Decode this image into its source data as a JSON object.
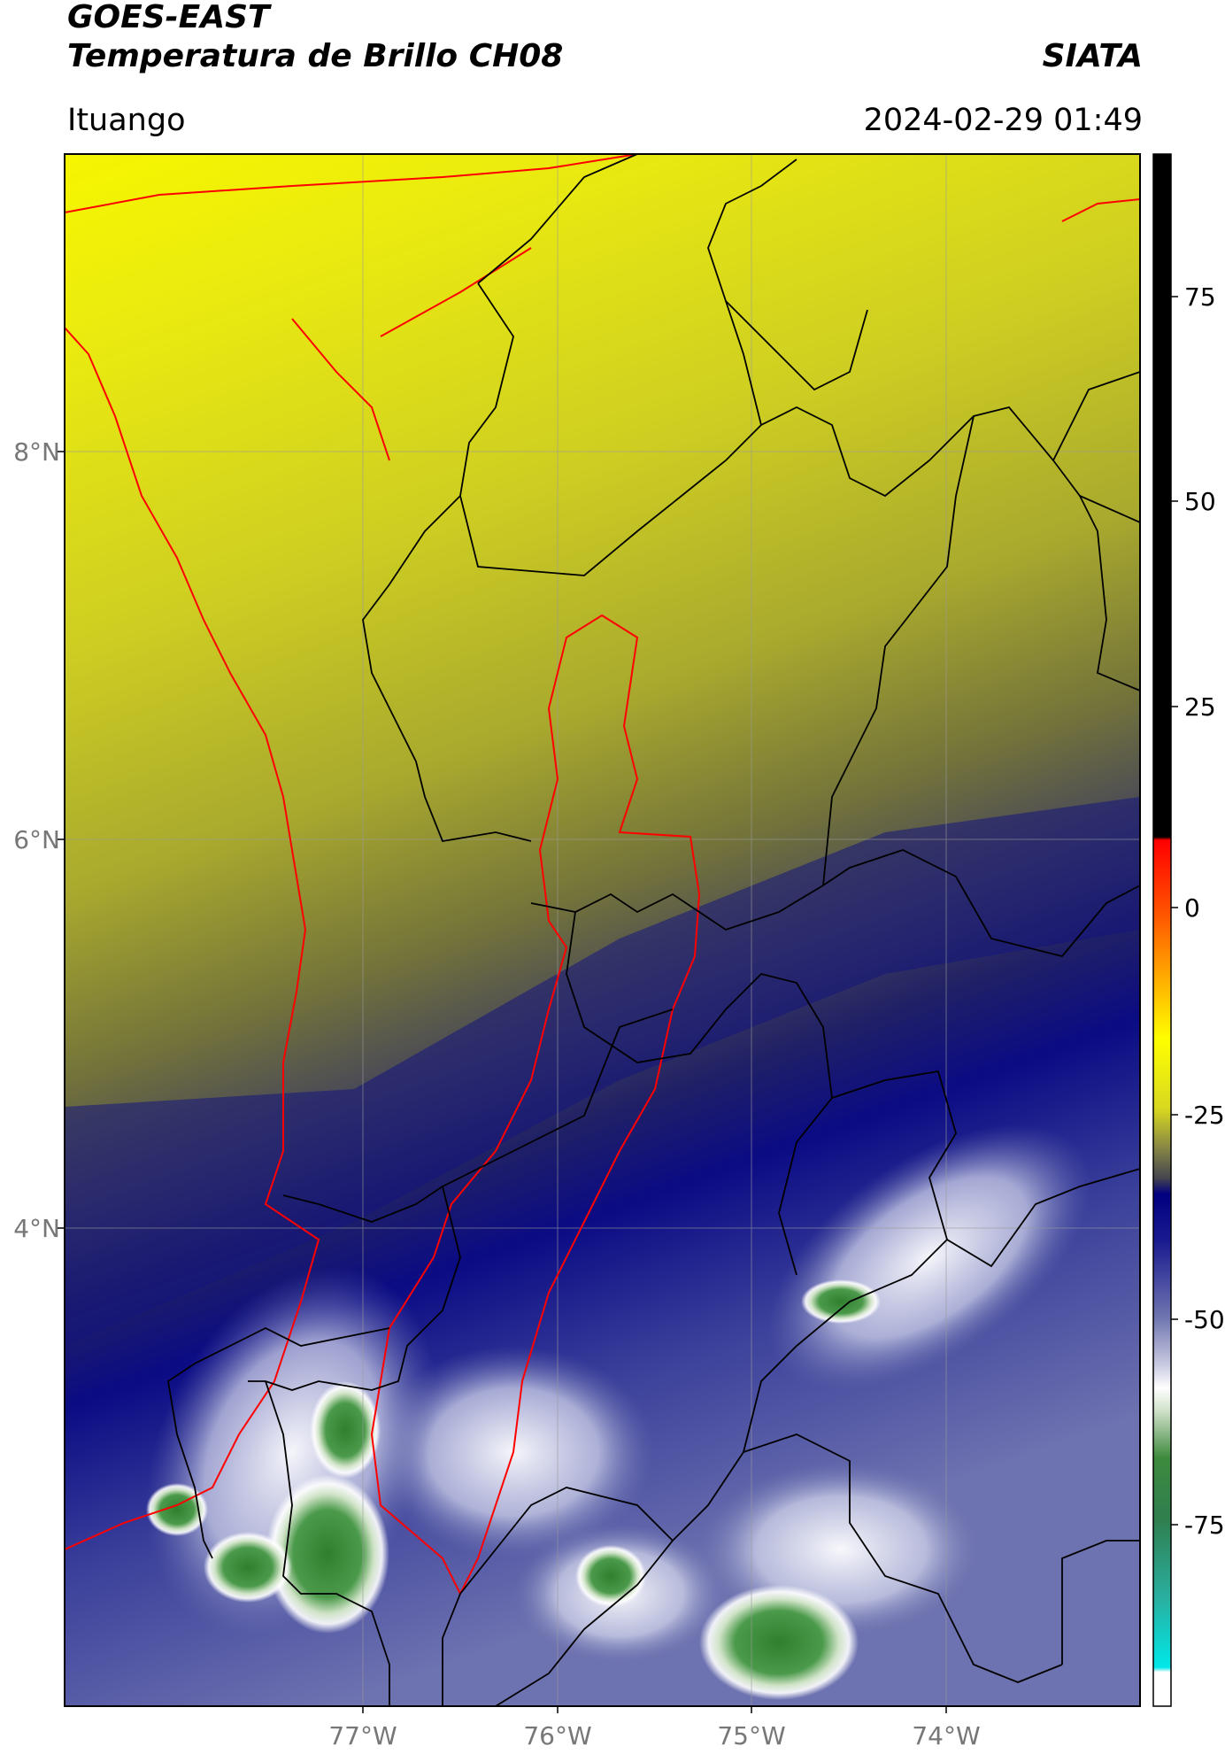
{
  "header": {
    "satellite": "GOES-EAST",
    "product": "Temperatura de Brillo CH08",
    "organization": "SIATA",
    "region": "Ituango",
    "timestamp": "2024-02-29 01:49"
  },
  "map": {
    "lat_labels": [
      "8°N",
      "6°N",
      "4°N"
    ],
    "lon_labels": [
      "77°W",
      "76°W",
      "75°W",
      "74°W"
    ]
  },
  "colorbar": {
    "ticks": [
      "75",
      "50",
      "25",
      "0",
      "-25",
      "-50",
      "-75"
    ],
    "colors": {
      "warm_black": "#000000",
      "red": "#ff0000",
      "orange": "#ff9900",
      "yellow": "#ffff00",
      "olive": "#7a7a30",
      "dark_gray": "#3a3a4a",
      "navy": "#000080",
      "blue_gray": "#7076b0",
      "white": "#ffffff",
      "green": "#2f7f2f",
      "cyan": "#00e5e5"
    }
  }
}
